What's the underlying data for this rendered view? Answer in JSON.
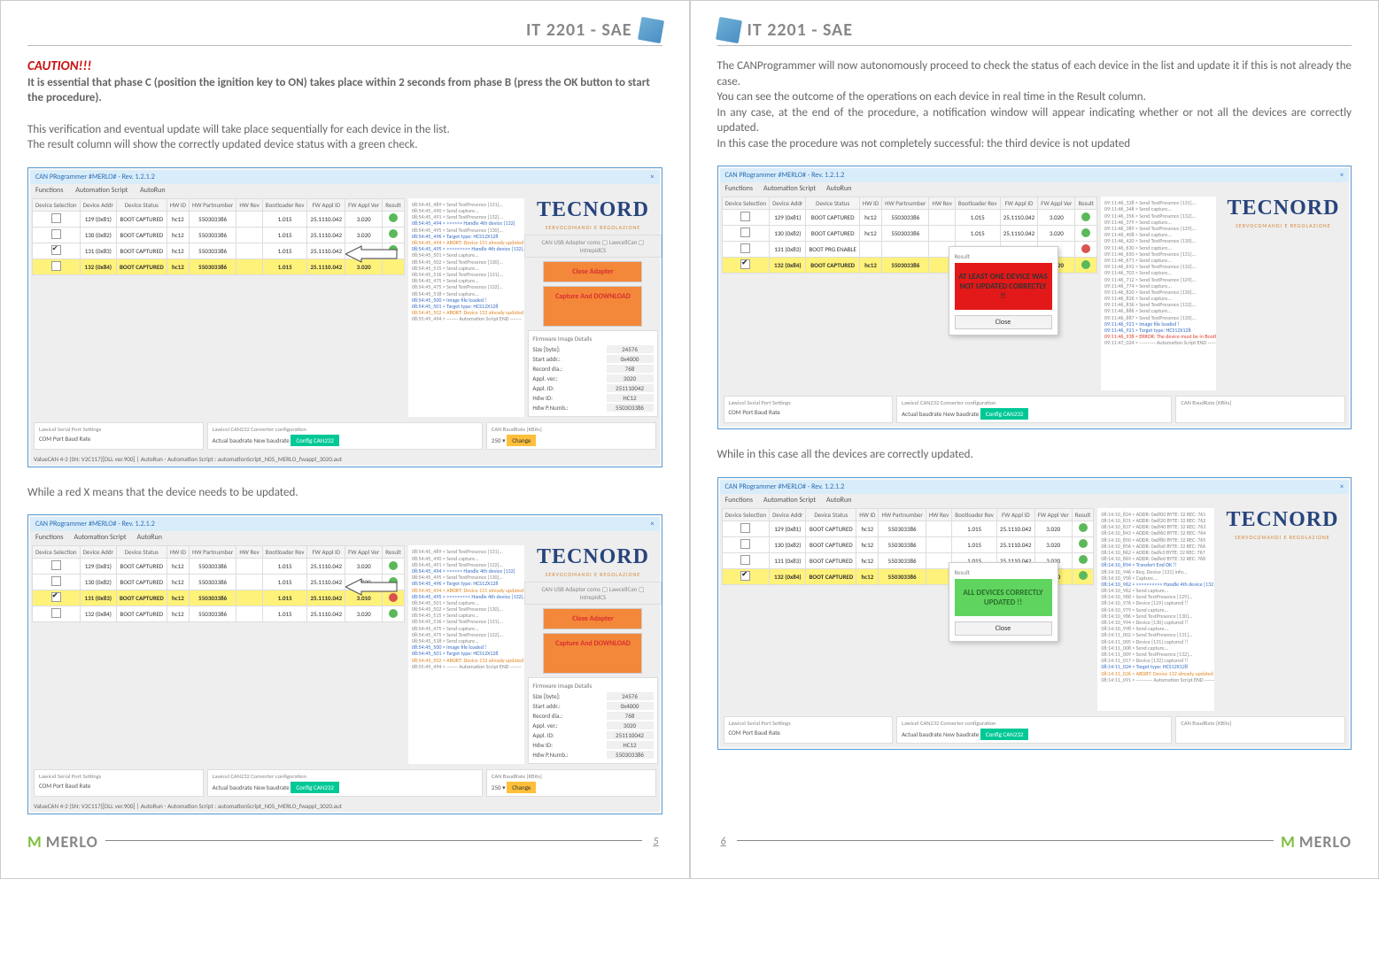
{
  "doc_title": "IT 2201 - SAE",
  "left_page": {
    "caution": "CAUTION!!!",
    "caution_body": "It is essential that phase C (position the ignition key to ON) takes place within 2 seconds from phase B (press the OK button to start the procedure).",
    "para2a": "This verification and eventual update will take place sequentially for each device in the list.",
    "para2b": "The result column will show the correctly updated device status with a green check.",
    "para3": "While a red X means that the device needs to be updated.",
    "page_num": "5"
  },
  "right_page": {
    "para1a": "The CANProgrammer will now autonomously proceed to check the status of each device in the list and update it if this is not already the case.",
    "para1b": "You can see the outcome of the operations on each device in real time in the Result column.",
    "para1c": "In any case, at the end of the procedure, a notification window will appear indicating whether or not all the devices are correctly updated.",
    "para1d": "In this case the procedure was not completely successful: the third device is not updated",
    "para2": "While in this case all the devices are correctly updated.",
    "page_num": "6"
  },
  "app": {
    "title": "CAN PRogrammer #MERLO# - Rev. 1.2.1.2",
    "menu": [
      "Functions",
      "Automation Script",
      "AutoRun"
    ],
    "brand": "TECNORD",
    "brand_sub": "SERVOCOMANDI E REGOLAZIONE",
    "btn_close": "Close Adapter",
    "btn_download": "Capture And DOWNLOAD",
    "details_title": "Firmware Image Details",
    "details": {
      "size_l": "Size [byte]:",
      "size_v": "24576",
      "start_l": "Start addr.:",
      "start_v": "0x4000",
      "record_l": "Record dia.:",
      "record_v": "768",
      "appl_l": "Appl. ver.:",
      "appl_v": "3020",
      "applid_l": "Appl. ID:",
      "applid_v": "251110042",
      "hdwr_l": "Hdw ID:",
      "hdw_v": "HC12",
      "hdwpn_l": "Hdw P.Numb.:",
      "hdwpn_v": "550303386"
    },
    "table_headers": [
      "Device Selection",
      "Device Addr",
      "Device Status",
      "HW ID",
      "HW Partnumber",
      "HW Rev",
      "Bootloader Rev",
      "FW Appl ID",
      "FW Appl Ver",
      "Result"
    ],
    "bottom": {
      "p1_title": "Lawicel Serial Port Settings",
      "p1_com": "COM Port",
      "p1_baud": "Baud Rate",
      "p2_title": "Lawicel CAN232 Converter configuration",
      "p2_act": "Actual baudrate",
      "p2_new": "New baudrate",
      "p2_btn": "Config CAN232",
      "p3_title": "CAN BaudRate [KBits]",
      "p3_val": "250",
      "p3_btn": "Change"
    },
    "statusbar": "ValueCAN 4-2 (SN: V2C117)[DLL ver.900] | AutoRun - Automation Script : automationScript_N05_MERLO_fwappl_3020.aut"
  },
  "sc1_rows": [
    {
      "sel": "",
      "addr": "129  (0x81)",
      "status": "BOOT CAPTURED",
      "hw": "hc12",
      "pn": "550303386",
      "rev": "",
      "boot": "1.015",
      "fwid": "25.1110.042",
      "fwver": "3.020",
      "res": "g"
    },
    {
      "sel": "",
      "addr": "130  (0x82)",
      "status": "BOOT CAPTURED",
      "hw": "hc12",
      "pn": "550303386",
      "rev": "",
      "boot": "1.015",
      "fwid": "25.1110.042",
      "fwver": "3.020",
      "res": "g"
    },
    {
      "sel": "✔",
      "addr": "131  (0x83)",
      "status": "BOOT CAPTURED",
      "hw": "hc12",
      "pn": "550303386",
      "rev": "",
      "boot": "1.015",
      "fwid": "25.1110.042",
      "fwver": "3.020",
      "res": "g"
    },
    {
      "sel": "",
      "addr": "132  (0x84)",
      "status": "BOOT CAPTURED",
      "hw": "hc12",
      "pn": "550303386",
      "rev": "",
      "boot": "1.015",
      "fwid": "25.1110.042",
      "fwver": "3.020",
      "res": "",
      "hl": true
    }
  ],
  "sc2_rows": [
    {
      "sel": "",
      "addr": "129  (0x81)",
      "status": "BOOT CAPTURED",
      "hw": "hc12",
      "pn": "550303386",
      "rev": "",
      "boot": "1.015",
      "fwid": "25.1110.042",
      "fwver": "3.020",
      "res": "g"
    },
    {
      "sel": "",
      "addr": "130  (0x82)",
      "status": "BOOT CAPTURED",
      "hw": "hc12",
      "pn": "550303386",
      "rev": "",
      "boot": "1.015",
      "fwid": "25.1110.042",
      "fwver": "3.020",
      "res": "g"
    },
    {
      "sel": "✔",
      "addr": "131  (0x83)",
      "status": "BOOT CAPTURED",
      "hw": "hc12",
      "pn": "550303386",
      "rev": "",
      "boot": "1.015",
      "fwid": "25.1110.042",
      "fwver": "3.010",
      "res": "r",
      "hl": true
    },
    {
      "sel": "",
      "addr": "132  (0x84)",
      "status": "BOOT CAPTURED",
      "hw": "hc12",
      "pn": "550303386",
      "rev": "",
      "boot": "1.015",
      "fwid": "25.1110.042",
      "fwver": "3.020",
      "res": "g"
    }
  ],
  "sc3_rows": [
    {
      "sel": "",
      "addr": "129  (0x81)",
      "status": "BOOT CAPTURED",
      "hw": "hc12",
      "pn": "550303386",
      "rev": "",
      "boot": "1.015",
      "fwid": "25.1110.042",
      "fwver": "3.020",
      "res": "g"
    },
    {
      "sel": "",
      "addr": "130  (0x82)",
      "status": "BOOT CAPTURED",
      "hw": "hc12",
      "pn": "550303386",
      "rev": "",
      "boot": "1.015",
      "fwid": "25.1110.042",
      "fwver": "3.020",
      "res": "g"
    },
    {
      "sel": "",
      "addr": "131  (0x83)",
      "status": "BOOT PRG ENABLE",
      "hw": "",
      "pn": "",
      "rev": "",
      "boot": "1.001*",
      "fwid": "",
      "fwver": "",
      "res": "r"
    },
    {
      "sel": "✔",
      "addr": "132  (0x84)",
      "status": "BOOT CAPTURED",
      "hw": "hc12",
      "pn": "550303386",
      "rev": "",
      "boot": "1.015",
      "fwid": "25.1110.042",
      "fwver": "3.020",
      "res": "g",
      "hl": true
    }
  ],
  "sc4_rows": [
    {
      "sel": "",
      "addr": "129  (0x81)",
      "status": "BOOT CAPTURED",
      "hw": "hc12",
      "pn": "550303386",
      "rev": "",
      "boot": "1.015",
      "fwid": "25.1110.042",
      "fwver": "3.020",
      "res": "g"
    },
    {
      "sel": "",
      "addr": "130  (0x82)",
      "status": "BOOT CAPTURED",
      "hw": "hc12",
      "pn": "550303386",
      "rev": "",
      "boot": "1.015",
      "fwid": "25.1110.042",
      "fwver": "3.020",
      "res": "g"
    },
    {
      "sel": "",
      "addr": "131  (0x83)",
      "status": "BOOT CAPTURED",
      "hw": "hc12",
      "pn": "550303386",
      "rev": "",
      "boot": "1.015",
      "fwid": "25.1110.042",
      "fwver": "3.020",
      "res": "g"
    },
    {
      "sel": "✔",
      "addr": "132  (0x84)",
      "status": "BOOT CAPTURED",
      "hw": "hc12",
      "pn": "550303386",
      "rev": "",
      "boot": "1.015",
      "fwid": "25.1110.042",
      "fwver": "3.020",
      "res": "g",
      "hl": true
    }
  ],
  "modal_err": {
    "title": "Result",
    "body": "AT LEAST ONE DEVICE WAS NOT UPDATED CORRECTLY !!",
    "close": "Close"
  },
  "modal_ok": {
    "title": "Result",
    "body": "ALL DEVICES CORRECTLY UPDATED !!",
    "close": "Close"
  },
  "log_lines1": [
    "08:54:45_489 > Send TestPresence [131]...",
    "08:54:45_490 > Send capture...",
    "08:54:45_491 > Send TestPresence [132]...",
    "08:54:45_494 > >>>>>> Handle 4th device [132]",
    "08:54:45_495 > Send TestPresence [130]...",
    "08:54:45_496 > Target type: HCS12X128",
    "08:54:45_494 > ABORT: Device 131 already updated",
    "08:54:45_495 > >>>>>>>>> Handle 4th device [132]...",
    "08:54:45_501 > Send capture...",
    "08:54:45_502 > Send TestPresence [130]...",
    "08:54:45_515 > Send capture...",
    "08:54:45_516 > Send TestPresence [131]...",
    "08:54:45_475 > Send capture...",
    "08:54:45_475 > Send TestPresence [132]...",
    "08:54:45_518 > Send capture...",
    "08:54:45_500 > Image file loaded !",
    "08:54:45_501 > Target type: HCS12X128",
    "08:54:45_502 > ABORT: Device 132 already updated",
    "08:55:49_494 > ------- Automation Script END -------"
  ],
  "log_lines_right": [
    "09:11:46_328 > Send TestPresence [131]...",
    "09:11:46_348 > Send capture...",
    "09:11:46_356 > Send TestPresence [132]...",
    "09:11:46_379 > Send capture...",
    "09:11:46_389 > Send TestPresence [129]...",
    "09:11:46_408 > Send capture...",
    "09:11:46_420 > Send TestPresence [130]...",
    "09:11:46_630 > Send capture...",
    "09:11:46_650 > Send TestPresence [131]...",
    "09:11:46_671 > Send capture...",
    "09:11:46_692 > Send TestPresence [132]...",
    "09:11:46_703 > Send capture...",
    "09:11:46_712 > Send TestPresence [129]...",
    "09:11:46_774 > Send capture...",
    "09:11:46_820 > Send TestPresence [130]...",
    "09:11:46_826 > Send capture...",
    "09:11:46_836 > Send TestPresence [132]...",
    "09:11:46_886 > Send capture...",
    "09:11:46_887 > Send TestPresence [130]...",
    "09:11:46_921 > Image file loaded !",
    "09:11:46_921 > Target type: HCS12X128",
    "09:11:46_938 > ERROR: The device must be in Bootloader state before start downloading",
    "09:11:47_024 > ---------- Automation Script END ----------"
  ],
  "log_lines_right2": [
    "08:14:10_824 > ADDR: 0xdf00 BYTE: 32  REC: 761",
    "08:14:10_831 > ADDR: 0xdf20 BYTE: 32  REC: 762",
    "08:14:10_837 > ADDR: 0xdf40 BYTE: 32  REC: 763",
    "08:14:10_843 > ADDR: 0xdf60 BYTE: 32  REC: 764",
    "08:14:10_850 > ADDR: 0xdf80 BYTE: 32  REC: 765",
    "08:14:10_856 > ADDR: 0xdfa0 BYTE: 32  REC: 766",
    "08:14:10_862 > ADDR: 0xdfc0 BYTE: 32  REC: 767",
    "08:14:10_869 > ADDR: 0xdfe0 BYTE: 32  REC: 768",
    "08:14:10_894 > Transfert End OK !!",
    "08:14:10_946 > Req. Device [131] info...",
    "08:14:10_958 > Capture...",
    "08:14:10_962 > >>>>>>>>>> Handle 4th device [132]",
    "08:14:10_962 > Send capture...",
    "08:14:10_968 > Send TestPresence [129]...",
    "08:14:10_976 > Device [129] captured !!",
    "08:14:10_979 > Send capture...",
    "08:14:10_986 > Send TestPresence [130]...",
    "08:14:10_994 > Device [130] captured !!",
    "08:14:10_998 > Send capture...",
    "08:14:11_002 > Send TestPresence [131]...",
    "08:14:11_005 > Device [131] captured !!",
    "08:14:11_008 > Send capture...",
    "08:14:11_009 > Send TestPresence [132]...",
    "08:14:11_017 > Device [132] captured !!",
    "08:14:11_024 > Target type: HCS12X128",
    "08:14:11_026 > ABORT: Device 132 already updated",
    "08:14:11_091 > ---------- Automation Script END ----------"
  ]
}
